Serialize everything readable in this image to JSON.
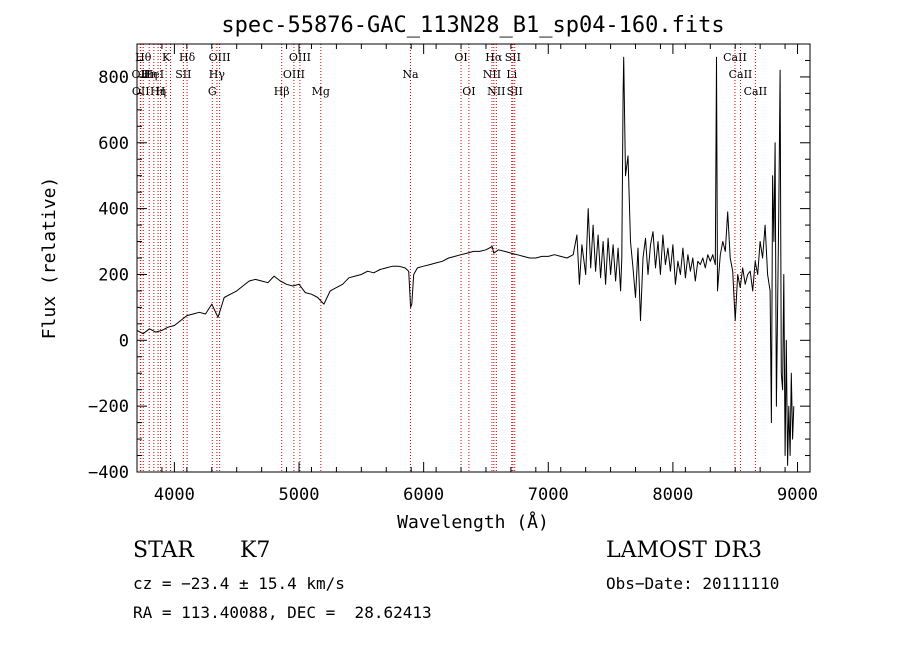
{
  "chart_data": {
    "type": "line",
    "title": "spec-55876-GAC_113N28_B1_sp04-160.fits",
    "xlabel": "Wavelength (Å)",
    "ylabel": "Flux (relative)",
    "xlim": [
      3700,
      9100
    ],
    "ylim": [
      -400,
      900
    ],
    "xticks": [
      4000,
      5000,
      6000,
      7000,
      8000,
      9000
    ],
    "yticks": [
      -400,
      -200,
      0,
      200,
      400,
      600,
      800
    ],
    "grid": false,
    "series": [
      {
        "color": "#000000",
        "points": [
          [
            3700,
            30
          ],
          [
            3750,
            20
          ],
          [
            3800,
            35
          ],
          [
            3850,
            25
          ],
          [
            3900,
            30
          ],
          [
            3950,
            40
          ],
          [
            4000,
            45
          ],
          [
            4050,
            60
          ],
          [
            4100,
            75
          ],
          [
            4150,
            80
          ],
          [
            4200,
            85
          ],
          [
            4250,
            80
          ],
          [
            4300,
            110
          ],
          [
            4350,
            70
          ],
          [
            4400,
            130
          ],
          [
            4450,
            140
          ],
          [
            4500,
            150
          ],
          [
            4550,
            165
          ],
          [
            4600,
            180
          ],
          [
            4650,
            185
          ],
          [
            4700,
            180
          ],
          [
            4750,
            175
          ],
          [
            4800,
            195
          ],
          [
            4850,
            180
          ],
          [
            4900,
            170
          ],
          [
            4950,
            165
          ],
          [
            5000,
            170
          ],
          [
            5050,
            145
          ],
          [
            5100,
            140
          ],
          [
            5150,
            130
          ],
          [
            5200,
            110
          ],
          [
            5250,
            150
          ],
          [
            5300,
            160
          ],
          [
            5350,
            170
          ],
          [
            5400,
            190
          ],
          [
            5450,
            195
          ],
          [
            5500,
            200
          ],
          [
            5550,
            210
          ],
          [
            5600,
            205
          ],
          [
            5650,
            215
          ],
          [
            5700,
            220
          ],
          [
            5750,
            225
          ],
          [
            5800,
            225
          ],
          [
            5850,
            220
          ],
          [
            5880,
            210
          ],
          [
            5895,
            100
          ],
          [
            5905,
            110
          ],
          [
            5920,
            200
          ],
          [
            5950,
            220
          ],
          [
            6000,
            225
          ],
          [
            6050,
            230
          ],
          [
            6100,
            235
          ],
          [
            6150,
            240
          ],
          [
            6200,
            250
          ],
          [
            6250,
            255
          ],
          [
            6300,
            260
          ],
          [
            6350,
            265
          ],
          [
            6400,
            270
          ],
          [
            6450,
            270
          ],
          [
            6500,
            275
          ],
          [
            6550,
            285
          ],
          [
            6563,
            265
          ],
          [
            6600,
            275
          ],
          [
            6650,
            270
          ],
          [
            6700,
            265
          ],
          [
            6750,
            260
          ],
          [
            6800,
            255
          ],
          [
            6850,
            250
          ],
          [
            6900,
            250
          ],
          [
            6950,
            255
          ],
          [
            7000,
            255
          ],
          [
            7050,
            260
          ],
          [
            7100,
            255
          ],
          [
            7150,
            250
          ],
          [
            7200,
            260
          ],
          [
            7230,
            320
          ],
          [
            7250,
            170
          ],
          [
            7270,
            290
          ],
          [
            7300,
            200
          ],
          [
            7320,
            400
          ],
          [
            7340,
            220
          ],
          [
            7360,
            350
          ],
          [
            7380,
            210
          ],
          [
            7400,
            320
          ],
          [
            7420,
            190
          ],
          [
            7440,
            300
          ],
          [
            7460,
            170
          ],
          [
            7480,
            310
          ],
          [
            7500,
            200
          ],
          [
            7520,
            290
          ],
          [
            7540,
            180
          ],
          [
            7560,
            280
          ],
          [
            7580,
            150
          ],
          [
            7590,
            250
          ],
          [
            7600,
            750
          ],
          [
            7605,
            860
          ],
          [
            7620,
            500
          ],
          [
            7640,
            560
          ],
          [
            7660,
            300
          ],
          [
            7680,
            220
          ],
          [
            7700,
            130
          ],
          [
            7720,
            280
          ],
          [
            7740,
            60
          ],
          [
            7760,
            250
          ],
          [
            7780,
            310
          ],
          [
            7800,
            200
          ],
          [
            7820,
            290
          ],
          [
            7840,
            330
          ],
          [
            7860,
            220
          ],
          [
            7880,
            300
          ],
          [
            7900,
            200
          ],
          [
            7920,
            320
          ],
          [
            7940,
            230
          ],
          [
            7960,
            280
          ],
          [
            7980,
            210
          ],
          [
            8000,
            290
          ],
          [
            8020,
            170
          ],
          [
            8040,
            240
          ],
          [
            8060,
            200
          ],
          [
            8080,
            280
          ],
          [
            8100,
            190
          ],
          [
            8120,
            260
          ],
          [
            8140,
            210
          ],
          [
            8160,
            250
          ],
          [
            8180,
            180
          ],
          [
            8200,
            240
          ],
          [
            8220,
            230
          ],
          [
            8240,
            250
          ],
          [
            8260,
            220
          ],
          [
            8280,
            260
          ],
          [
            8300,
            240
          ],
          [
            8320,
            260
          ],
          [
            8340,
            230
          ],
          [
            8350,
            860
          ],
          [
            8358,
            150
          ],
          [
            8380,
            260
          ],
          [
            8400,
            300
          ],
          [
            8420,
            270
          ],
          [
            8440,
            390
          ],
          [
            8460,
            250
          ],
          [
            8480,
            210
          ],
          [
            8500,
            60
          ],
          [
            8520,
            200
          ],
          [
            8540,
            160
          ],
          [
            8560,
            220
          ],
          [
            8580,
            170
          ],
          [
            8600,
            200
          ],
          [
            8620,
            210
          ],
          [
            8640,
            150
          ],
          [
            8660,
            240
          ],
          [
            8680,
            200
          ],
          [
            8700,
            300
          ],
          [
            8720,
            250
          ],
          [
            8740,
            350
          ],
          [
            8760,
            200
          ],
          [
            8780,
            150
          ],
          [
            8790,
            -250
          ],
          [
            8800,
            500
          ],
          [
            8810,
            300
          ],
          [
            8820,
            600
          ],
          [
            8830,
            -200
          ],
          [
            8840,
            100
          ],
          [
            8850,
            400
          ],
          [
            8860,
            820
          ],
          [
            8870,
            -100
          ],
          [
            8880,
            -150
          ],
          [
            8890,
            200
          ],
          [
            8900,
            -350
          ],
          [
            8910,
            0
          ],
          [
            8920,
            -380
          ],
          [
            8930,
            -200
          ],
          [
            8940,
            -350
          ],
          [
            8950,
            -100
          ],
          [
            8960,
            -300
          ],
          [
            8970,
            -200
          ]
        ]
      }
    ],
    "annotations": {
      "line_color": "#cc0000",
      "lines": [
        {
          "x": 3750,
          "row": 1,
          "label": "Hθ"
        },
        {
          "x": 3727,
          "row": 2,
          "label": "OII"
        },
        {
          "x": 3730,
          "row": 3,
          "label": "OII"
        },
        {
          "x": 3798,
          "row": 2,
          "label": "Hη"
        },
        {
          "x": 3835,
          "row": 2,
          "label": "HeI"
        },
        {
          "x": 3869,
          "row": 3,
          "label": "Hη"
        },
        {
          "x": 3889,
          "row": 3,
          "label": "H"
        },
        {
          "x": 3934,
          "row": 1,
          "label": "K"
        },
        {
          "x": 3969,
          "row": 1,
          "label": ""
        },
        {
          "x": 4072,
          "row": 2,
          "label": "SII"
        },
        {
          "x": 4102,
          "row": 1,
          "label": "Hδ"
        },
        {
          "x": 4304,
          "row": 3,
          "label": "G"
        },
        {
          "x": 4341,
          "row": 2,
          "label": "Hγ"
        },
        {
          "x": 4363,
          "row": 1,
          "label": "OIII"
        },
        {
          "x": 4861,
          "row": 3,
          "label": "Hβ"
        },
        {
          "x": 4959,
          "row": 2,
          "label": "OIII"
        },
        {
          "x": 5007,
          "row": 1,
          "label": "OIII"
        },
        {
          "x": 5175,
          "row": 3,
          "label": "Mg"
        },
        {
          "x": 5894,
          "row": 2,
          "label": "Na"
        },
        {
          "x": 6300,
          "row": 1,
          "label": "OI"
        },
        {
          "x": 6363,
          "row": 3,
          "label": "OI"
        },
        {
          "x": 6548,
          "row": 2,
          "label": "NII"
        },
        {
          "x": 6563,
          "row": 1,
          "label": "Hα"
        },
        {
          "x": 6583,
          "row": 3,
          "label": "NII"
        },
        {
          "x": 6707,
          "row": 2,
          "label": "Li"
        },
        {
          "x": 6716,
          "row": 1,
          "label": "SII"
        },
        {
          "x": 6731,
          "row": 3,
          "label": "SII"
        },
        {
          "x": 8498,
          "row": 1,
          "label": "CaII"
        },
        {
          "x": 8542,
          "row": 2,
          "label": "CaII"
        },
        {
          "x": 8662,
          "row": 3,
          "label": "CaII"
        }
      ]
    }
  },
  "info": {
    "object_class": "STAR",
    "subclass": "K7",
    "survey": "LAMOST DR3",
    "cz": "cz = −23.4 ± 15.4 km/s",
    "obs_date": "Obs−Date: 20111110",
    "coords": "RA = 113.40088, DEC =  28.62413"
  }
}
